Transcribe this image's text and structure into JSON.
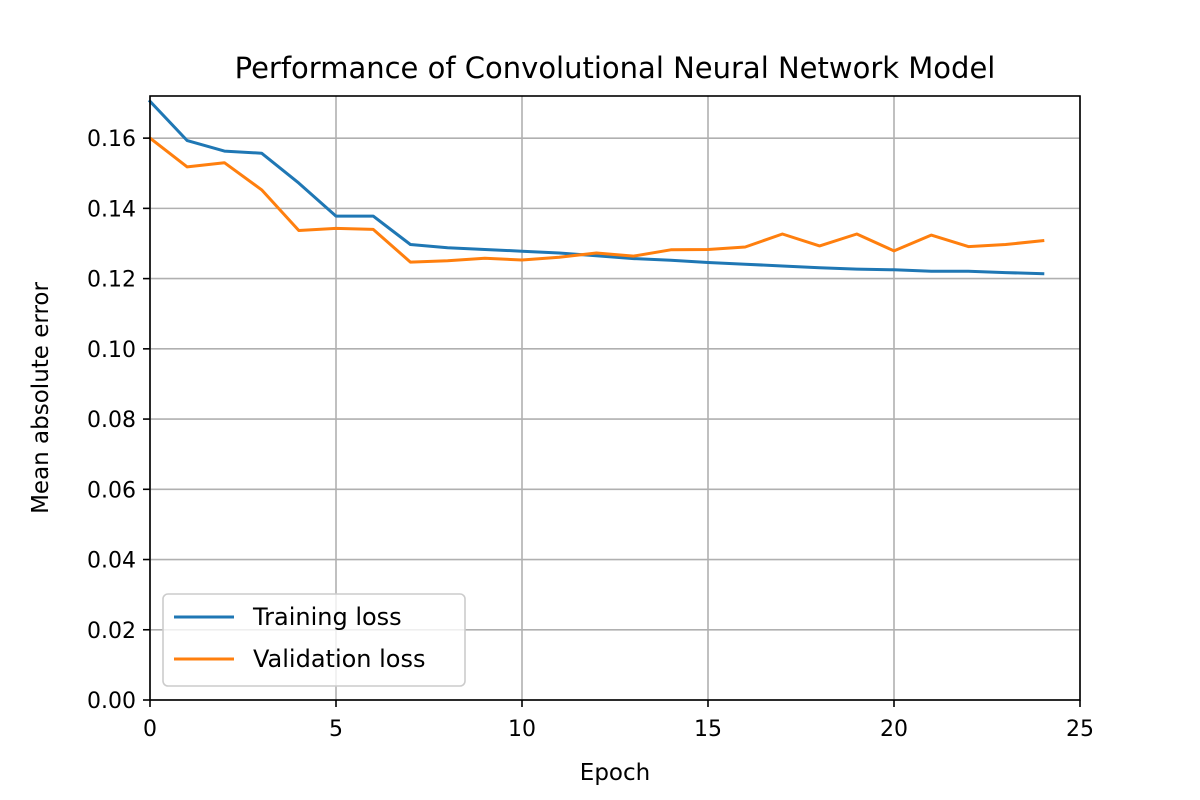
{
  "chart_data": {
    "type": "line",
    "title": "Performance of Convolutional Neural Network Model",
    "xlabel": "Epoch",
    "ylabel": "Mean absolute error",
    "xlim": [
      0,
      25
    ],
    "ylim": [
      0,
      0.172
    ],
    "xticks": [
      0,
      5,
      10,
      15,
      20,
      25
    ],
    "xtick_labels": [
      "0",
      "5",
      "10",
      "15",
      "20",
      "25"
    ],
    "yticks": [
      0,
      0.02,
      0.04,
      0.06,
      0.08,
      0.1,
      0.12,
      0.14,
      0.16
    ],
    "ytick_labels": [
      "0.00",
      "0.02",
      "0.04",
      "0.06",
      "0.08",
      "0.10",
      "0.12",
      "0.14",
      "0.16"
    ],
    "grid": true,
    "legend_position": "lower-left",
    "x": [
      0,
      1,
      2,
      3,
      4,
      5,
      6,
      7,
      8,
      9,
      10,
      11,
      12,
      13,
      14,
      15,
      16,
      17,
      18,
      19,
      20,
      21,
      22,
      23,
      24
    ],
    "series": [
      {
        "name": "Training loss",
        "color": "#1f77b4",
        "values": [
          0.1705,
          0.1593,
          0.1563,
          0.1557,
          0.1472,
          0.1378,
          0.1378,
          0.1297,
          0.1288,
          0.1283,
          0.1278,
          0.1273,
          0.1265,
          0.1257,
          0.1252,
          0.1246,
          0.1241,
          0.1236,
          0.1231,
          0.1227,
          0.1225,
          0.1221,
          0.1221,
          0.1217,
          0.1214
        ]
      },
      {
        "name": "Validation loss",
        "color": "#ff7f0e",
        "values": [
          0.16,
          0.1518,
          0.153,
          0.1453,
          0.1337,
          0.1343,
          0.134,
          0.1247,
          0.1251,
          0.1258,
          0.1253,
          0.1261,
          0.1273,
          0.1264,
          0.1282,
          0.1283,
          0.129,
          0.1327,
          0.1293,
          0.1327,
          0.1279,
          0.1324,
          0.1291,
          0.1297,
          0.1308
        ]
      }
    ]
  }
}
